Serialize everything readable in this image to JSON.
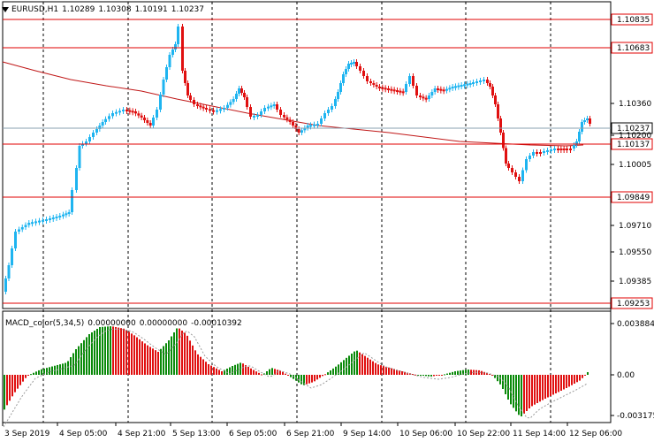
{
  "header": {
    "symbol": "EURUSD,H1",
    "open": "1.10289",
    "high": "1.10308",
    "low": "1.10191",
    "close": "1.10237"
  },
  "indicator": {
    "name": "MACD_color(5,34,5)",
    "v1": "0.00000000",
    "v2": "0.00000000",
    "v3": "-0.00010392"
  },
  "price_axis": {
    "ticks": [
      "1.10360",
      "1.10200",
      "1.10005",
      "1.09710",
      "1.09550",
      "1.09385"
    ]
  },
  "hlines": [
    {
      "label": "1.10835",
      "color": "#e00000"
    },
    {
      "label": "1.10683",
      "color": "#e00000"
    },
    {
      "label": "1.10137",
      "color": "#e00000"
    },
    {
      "label": "1.09849",
      "color": "#e00000"
    },
    {
      "label": "1.09253",
      "color": "#e00000"
    }
  ],
  "current_price": {
    "label": "1.10237"
  },
  "macd_axis": {
    "ticks": [
      "0.0038840",
      "0.00",
      "-0.003175"
    ]
  },
  "time_axis": {
    "ticks": [
      "3 Sep 2019",
      "4 Sep 05:00",
      "4 Sep 21:00",
      "5 Sep 13:00",
      "6 Sep 05:00",
      "6 Sep 21:00",
      "9 Sep 14:00",
      "10 Sep 06:00",
      "10 Sep 22:00",
      "11 Sep 14:00",
      "12 Sep 06:00"
    ]
  },
  "colors": {
    "bull": "#1eb4f0",
    "bear": "#e01010",
    "ma": "#c01818",
    "hist_up": "#0a8a0a",
    "hist_down": "#e01010"
  }
}
